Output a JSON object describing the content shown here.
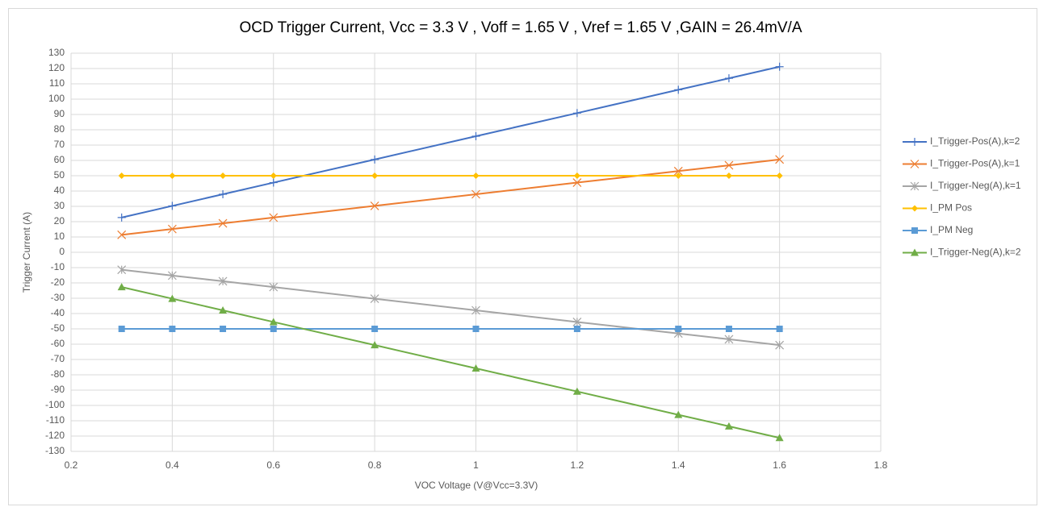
{
  "chart_data": {
    "type": "line",
    "title": "OCD Trigger Current, Vcc = 3.3 V , Voff = 1.65 V , Vref = 1.65 V ,GAIN = 26.4mV/A",
    "xlabel": "VOC Voltage (V@Vcc=3.3V)",
    "ylabel": "Trigger Current (A)",
    "x": [
      0.3,
      0.4,
      0.5,
      0.6,
      0.8,
      1.0,
      1.2,
      1.4,
      1.5,
      1.6
    ],
    "series": [
      {
        "name": "I_Trigger-Pos(A),k=2",
        "color": "#4472c4",
        "marker": "plus",
        "values": [
          22.7,
          30.3,
          37.9,
          45.5,
          60.6,
          75.8,
          90.9,
          106.1,
          113.6,
          121.2
        ]
      },
      {
        "name": "I_Trigger-Pos(A),k=1",
        "color": "#ed7d31",
        "marker": "x",
        "values": [
          11.4,
          15.2,
          18.9,
          22.7,
          30.3,
          37.9,
          45.5,
          53.0,
          56.8,
          60.6
        ]
      },
      {
        "name": "I_Trigger-Neg(A),k=1",
        "color": "#a5a5a5",
        "marker": "star",
        "values": [
          -11.4,
          -15.2,
          -18.9,
          -22.7,
          -30.3,
          -37.9,
          -45.5,
          -53.0,
          -56.8,
          -60.6
        ]
      },
      {
        "name": "I_PM Pos",
        "color": "#ffc000",
        "marker": "diamond",
        "values": [
          50,
          50,
          50,
          50,
          50,
          50,
          50,
          50,
          50,
          50
        ]
      },
      {
        "name": "I_PM Neg",
        "color": "#5b9bd5",
        "marker": "square",
        "values": [
          -50,
          -50,
          -50,
          -50,
          -50,
          -50,
          -50,
          -50,
          -50,
          -50
        ]
      },
      {
        "name": "I_Trigger-Neg(A),k=2",
        "color": "#70ad47",
        "marker": "triangle",
        "values": [
          -22.7,
          -30.3,
          -37.9,
          -45.5,
          -60.6,
          -75.8,
          -90.9,
          -106.1,
          -113.6,
          -121.2
        ]
      }
    ],
    "xlim": [
      0.2,
      1.8
    ],
    "xticks": [
      0.2,
      0.4,
      0.6,
      0.8,
      1,
      1.2,
      1.4,
      1.6,
      1.8
    ],
    "ylim": [
      -130,
      130
    ],
    "yticks": [
      -130,
      -120,
      -110,
      -100,
      -90,
      -80,
      -70,
      -60,
      -50,
      -40,
      -30,
      -20,
      -10,
      0,
      10,
      20,
      30,
      40,
      50,
      60,
      70,
      80,
      90,
      100,
      110,
      120,
      130
    ],
    "grid": true,
    "legend": "right"
  }
}
